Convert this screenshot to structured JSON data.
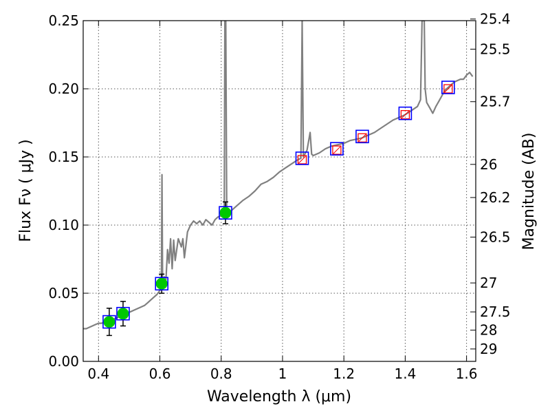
{
  "chart_data": {
    "type": "line",
    "xlabel": "Wavelength  λ (μm)",
    "ylabel": "Flux  Fν  ( μJy )",
    "y2label": "Magnitude (AB)",
    "xlim": [
      0.35,
      1.63
    ],
    "ylim": [
      0,
      0.25
    ],
    "grid": true,
    "x_ticks": [
      0.4,
      0.6,
      0.8,
      1.0,
      1.2,
      1.4,
      1.6
    ],
    "x_tick_labels": [
      "0.4",
      "0.6",
      "0.8",
      "1",
      "1.2",
      "1.4",
      "1.6"
    ],
    "y_ticks": [
      0,
      0.05,
      0.1,
      0.15,
      0.2,
      0.25
    ],
    "y_tick_labels": [
      "0.00",
      "0.05",
      "0.10",
      "0.15",
      "0.20",
      "0.25"
    ],
    "y2_ticks": [
      {
        "label": "25.4",
        "value": 25.4
      },
      {
        "label": "25.5",
        "value": 25.5
      },
      {
        "label": "25.7",
        "value": 25.7
      },
      {
        "label": "26",
        "value": 26.0
      },
      {
        "label": "26.2",
        "value": 26.2
      },
      {
        "label": "26.5",
        "value": 26.5
      },
      {
        "label": "27",
        "value": 27.0
      },
      {
        "label": "27.5",
        "value": 27.5
      },
      {
        "label": "28",
        "value": 28.0
      },
      {
        "label": "29",
        "value": 29.0
      }
    ],
    "series": [
      {
        "kind": "model_spectrum",
        "color": "#808080",
        "points": [
          [
            0.35,
            0.024
          ],
          [
            0.36,
            0.024
          ],
          [
            0.37,
            0.025
          ],
          [
            0.38,
            0.026
          ],
          [
            0.39,
            0.027
          ],
          [
            0.4,
            0.028
          ],
          [
            0.41,
            0.028
          ],
          [
            0.42,
            0.029
          ],
          [
            0.43,
            0.029
          ],
          [
            0.44,
            0.03
          ],
          [
            0.45,
            0.031
          ],
          [
            0.46,
            0.032
          ],
          [
            0.47,
            0.033
          ],
          [
            0.48,
            0.034
          ],
          [
            0.49,
            0.035
          ],
          [
            0.5,
            0.036
          ],
          [
            0.51,
            0.037
          ],
          [
            0.52,
            0.038
          ],
          [
            0.53,
            0.039
          ],
          [
            0.54,
            0.04
          ],
          [
            0.55,
            0.041
          ],
          [
            0.56,
            0.043
          ],
          [
            0.57,
            0.045
          ],
          [
            0.58,
            0.047
          ],
          [
            0.59,
            0.049
          ],
          [
            0.6,
            0.052
          ],
          [
            0.605,
            0.056
          ],
          [
            0.607,
            0.137
          ],
          [
            0.609,
            0.058
          ],
          [
            0.615,
            0.062
          ],
          [
            0.62,
            0.06
          ],
          [
            0.625,
            0.082
          ],
          [
            0.63,
            0.072
          ],
          [
            0.635,
            0.09
          ],
          [
            0.64,
            0.068
          ],
          [
            0.645,
            0.089
          ],
          [
            0.65,
            0.074
          ],
          [
            0.66,
            0.09
          ],
          [
            0.67,
            0.084
          ],
          [
            0.675,
            0.09
          ],
          [
            0.68,
            0.076
          ],
          [
            0.685,
            0.085
          ],
          [
            0.69,
            0.095
          ],
          [
            0.7,
            0.1
          ],
          [
            0.71,
            0.103
          ],
          [
            0.72,
            0.101
          ],
          [
            0.73,
            0.103
          ],
          [
            0.74,
            0.1
          ],
          [
            0.75,
            0.104
          ],
          [
            0.76,
            0.102
          ],
          [
            0.77,
            0.1
          ],
          [
            0.78,
            0.104
          ],
          [
            0.79,
            0.106
          ],
          [
            0.8,
            0.107
          ],
          [
            0.81,
            0.108
          ],
          [
            0.812,
            0.25
          ],
          [
            0.815,
            0.25
          ],
          [
            0.818,
            0.108
          ],
          [
            0.83,
            0.11
          ],
          [
            0.85,
            0.114
          ],
          [
            0.87,
            0.118
          ],
          [
            0.89,
            0.121
          ],
          [
            0.91,
            0.125
          ],
          [
            0.93,
            0.13
          ],
          [
            0.95,
            0.132
          ],
          [
            0.97,
            0.135
          ],
          [
            0.99,
            0.139
          ],
          [
            1.01,
            0.142
          ],
          [
            1.03,
            0.145
          ],
          [
            1.05,
            0.148
          ],
          [
            1.06,
            0.149
          ],
          [
            1.064,
            0.25
          ],
          [
            1.068,
            0.15
          ],
          [
            1.07,
            0.151
          ],
          [
            1.08,
            0.155
          ],
          [
            1.09,
            0.168
          ],
          [
            1.095,
            0.152
          ],
          [
            1.1,
            0.151
          ],
          [
            1.12,
            0.153
          ],
          [
            1.14,
            0.156
          ],
          [
            1.16,
            0.158
          ],
          [
            1.18,
            0.159
          ],
          [
            1.2,
            0.16
          ],
          [
            1.22,
            0.162
          ],
          [
            1.24,
            0.163
          ],
          [
            1.26,
            0.164
          ],
          [
            1.28,
            0.166
          ],
          [
            1.3,
            0.168
          ],
          [
            1.32,
            0.171
          ],
          [
            1.34,
            0.174
          ],
          [
            1.36,
            0.177
          ],
          [
            1.38,
            0.179
          ],
          [
            1.4,
            0.181
          ],
          [
            1.42,
            0.184
          ],
          [
            1.44,
            0.187
          ],
          [
            1.45,
            0.192
          ],
          [
            1.455,
            0.25
          ],
          [
            1.462,
            0.25
          ],
          [
            1.465,
            0.2
          ],
          [
            1.47,
            0.19
          ],
          [
            1.48,
            0.186
          ],
          [
            1.49,
            0.182
          ],
          [
            1.5,
            0.187
          ],
          [
            1.51,
            0.191
          ],
          [
            1.52,
            0.195
          ],
          [
            1.53,
            0.199
          ],
          [
            1.54,
            0.201
          ],
          [
            1.55,
            0.203
          ],
          [
            1.56,
            0.205
          ],
          [
            1.57,
            0.206
          ],
          [
            1.58,
            0.207
          ],
          [
            1.59,
            0.207
          ],
          [
            1.6,
            0.21
          ],
          [
            1.61,
            0.212
          ],
          [
            1.62,
            0.209
          ]
        ]
      },
      {
        "kind": "model_photometry",
        "marker": "open_square",
        "color": "#0000ff",
        "points": [
          [
            0.435,
            0.029
          ],
          [
            0.48,
            0.035
          ],
          [
            0.606,
            0.057
          ],
          [
            0.814,
            0.109
          ],
          [
            1.064,
            0.149
          ],
          [
            1.177,
            0.156
          ],
          [
            1.26,
            0.165
          ],
          [
            1.4,
            0.182
          ],
          [
            1.54,
            0.201
          ]
        ]
      },
      {
        "kind": "observed_detections",
        "marker": "filled_circle",
        "color": "#00c800",
        "points": [
          {
            "x": 0.435,
            "y": 0.029,
            "err": 0.01
          },
          {
            "x": 0.48,
            "y": 0.035,
            "err": 0.009
          },
          {
            "x": 0.606,
            "y": 0.057,
            "err": 0.007
          },
          {
            "x": 0.814,
            "y": 0.109,
            "err": 0.008
          }
        ]
      },
      {
        "kind": "observed_upper_limits",
        "marker": "open_square_with_x",
        "color": "#ff0000",
        "points": [
          [
            1.064,
            0.148
          ],
          [
            1.177,
            0.155
          ],
          [
            1.26,
            0.164
          ],
          [
            1.4,
            0.181
          ],
          [
            1.54,
            0.2
          ]
        ]
      }
    ]
  }
}
